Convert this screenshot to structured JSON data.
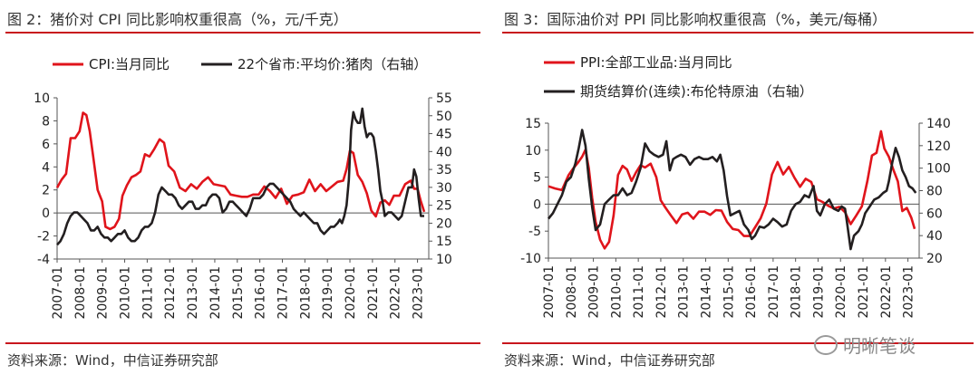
{
  "left": {
    "title": "图 2：猪价对 CPI 同比影响权重很高（%，元/千克）",
    "source": "资料来源：Wind，中信证券研究部"
  },
  "right": {
    "title": "图 3：国际油价对 PPI 同比影响权重很高（%，美元/每桶）",
    "source": "资料来源：Wind，中信证券研究部"
  },
  "watermark": "明晰笔谈",
  "colors": {
    "red": "#e0141b",
    "black": "#231f20",
    "accent": "#c8161d"
  },
  "chart_data": [
    {
      "type": "line",
      "x_ticks": [
        "2007-01",
        "2008-01",
        "2009-01",
        "2010-01",
        "2011-01",
        "2012-01",
        "2013-01",
        "2014-01",
        "2015-01",
        "2016-01",
        "2017-01",
        "2018-01",
        "2019-01",
        "2020-01",
        "2021-01",
        "2022-01",
        "2023-01"
      ],
      "x_range": [
        2007.0,
        2023.5
      ],
      "ylim": [
        -4,
        10
      ],
      "yticks": [
        -4,
        -2,
        0,
        2,
        4,
        6,
        8,
        10
      ],
      "y2lim": [
        10,
        55
      ],
      "y2ticks": [
        10,
        15,
        20,
        25,
        30,
        35,
        40,
        45,
        50,
        55
      ],
      "series": [
        {
          "name": "CPI:当月同比",
          "axis": "left",
          "color": "#e0141b",
          "x": [
            2007.0,
            2007.2,
            2007.4,
            2007.6,
            2007.8,
            2008.0,
            2008.15,
            2008.3,
            2008.45,
            2008.6,
            2008.8,
            2009.0,
            2009.15,
            2009.35,
            2009.55,
            2009.75,
            2009.9,
            2010.1,
            2010.3,
            2010.5,
            2010.7,
            2010.9,
            2011.1,
            2011.3,
            2011.55,
            2011.75,
            2011.95,
            2012.2,
            2012.45,
            2012.7,
            2012.95,
            2013.2,
            2013.45,
            2013.7,
            2013.95,
            2014.2,
            2014.45,
            2014.7,
            2014.95,
            2015.2,
            2015.45,
            2015.7,
            2015.95,
            2016.2,
            2016.45,
            2016.7,
            2016.95,
            2017.2,
            2017.45,
            2017.7,
            2017.95,
            2018.2,
            2018.45,
            2018.7,
            2018.95,
            2019.2,
            2019.45,
            2019.7,
            2019.85,
            2020.0,
            2020.15,
            2020.35,
            2020.55,
            2020.75,
            2020.95,
            2021.15,
            2021.35,
            2021.55,
            2021.75,
            2021.95,
            2022.2,
            2022.45,
            2022.7,
            2022.85,
            2023.0,
            2023.15,
            2023.3
          ],
          "y": [
            2.2,
            2.9,
            3.4,
            6.5,
            6.5,
            7.1,
            8.7,
            8.5,
            7.1,
            4.9,
            2.0,
            1.0,
            -1.2,
            -1.4,
            -1.2,
            -0.5,
            1.5,
            2.4,
            3.1,
            3.3,
            3.6,
            5.1,
            4.9,
            5.5,
            6.4,
            6.1,
            4.1,
            3.6,
            2.2,
            1.9,
            2.5,
            2.1,
            2.7,
            3.1,
            2.5,
            2.4,
            2.3,
            1.6,
            1.5,
            1.4,
            1.4,
            1.6,
            1.6,
            2.3,
            1.9,
            1.3,
            2.1,
            0.8,
            1.5,
            1.6,
            1.8,
            2.9,
            1.9,
            2.5,
            1.9,
            2.3,
            2.7,
            2.8,
            3.8,
            5.4,
            5.2,
            3.3,
            2.7,
            1.7,
            0.2,
            -0.3,
            0.9,
            1.1,
            0.7,
            1.5,
            1.5,
            2.5,
            2.8,
            2.1,
            2.1,
            1.0,
            0.1
          ]
        },
        {
          "name": "22个省市:平均价:猪肉（右轴）",
          "axis": "right",
          "color": "#231f20",
          "x": [
            2007.0,
            2007.15,
            2007.3,
            2007.45,
            2007.6,
            2007.75,
            2007.9,
            2008.05,
            2008.2,
            2008.35,
            2008.5,
            2008.65,
            2008.8,
            2008.95,
            2009.1,
            2009.25,
            2009.4,
            2009.55,
            2009.7,
            2009.85,
            2010.0,
            2010.15,
            2010.3,
            2010.45,
            2010.6,
            2010.75,
            2010.9,
            2011.05,
            2011.2,
            2011.35,
            2011.5,
            2011.65,
            2011.8,
            2011.95,
            2012.1,
            2012.25,
            2012.4,
            2012.55,
            2012.7,
            2012.85,
            2013.0,
            2013.15,
            2013.3,
            2013.45,
            2013.6,
            2013.75,
            2013.9,
            2014.05,
            2014.2,
            2014.35,
            2014.5,
            2014.65,
            2014.8,
            2014.95,
            2015.1,
            2015.25,
            2015.4,
            2015.55,
            2015.7,
            2015.85,
            2016.0,
            2016.15,
            2016.3,
            2016.45,
            2016.6,
            2016.75,
            2016.9,
            2017.05,
            2017.2,
            2017.35,
            2017.5,
            2017.65,
            2017.8,
            2017.95,
            2018.1,
            2018.25,
            2018.4,
            2018.55,
            2018.7,
            2018.85,
            2019.0,
            2019.15,
            2019.3,
            2019.45,
            2019.55,
            2019.65,
            2019.75,
            2019.85,
            2019.95,
            2020.05,
            2020.15,
            2020.25,
            2020.35,
            2020.45,
            2020.55,
            2020.65,
            2020.75,
            2020.85,
            2020.95,
            2021.05,
            2021.15,
            2021.25,
            2021.35,
            2021.45,
            2021.55,
            2021.7,
            2021.85,
            2022.0,
            2022.15,
            2022.3,
            2022.45,
            2022.6,
            2022.75,
            2022.85,
            2022.95,
            2023.05,
            2023.15,
            2023.3
          ],
          "y": [
            14,
            15,
            17,
            20,
            22,
            23,
            23,
            22,
            21,
            20,
            18,
            18,
            19,
            17,
            16,
            16,
            15,
            16,
            17,
            17,
            18,
            16,
            15,
            15,
            16,
            18,
            19,
            19,
            20,
            23,
            28,
            30,
            29,
            28,
            28,
            27,
            25,
            24,
            25,
            26,
            26,
            24,
            24,
            25,
            25,
            27,
            28,
            28,
            27,
            23,
            24,
            26,
            26,
            25,
            24,
            23,
            22,
            24,
            27,
            27,
            27,
            28,
            30,
            31,
            31,
            30,
            29,
            28,
            27,
            26,
            24,
            23,
            22,
            23,
            22,
            21,
            20,
            20,
            18,
            17,
            18,
            19,
            19,
            20,
            21,
            20,
            22,
            25,
            32,
            46,
            51,
            49,
            48,
            48,
            52,
            47,
            44,
            45,
            45,
            44,
            40,
            35,
            29,
            26,
            22,
            23,
            23,
            22,
            21,
            22,
            26,
            30,
            30,
            35,
            33,
            27,
            22,
            22
          ]
        }
      ]
    },
    {
      "type": "line",
      "x_ticks": [
        "2007-01",
        "2008-01",
        "2009-01",
        "2010-01",
        "2011-01",
        "2012-01",
        "2013-01",
        "2014-01",
        "2015-01",
        "2016-01",
        "2017-01",
        "2018-01",
        "2019-01",
        "2020-01",
        "2021-01",
        "2022-01",
        "2023-01"
      ],
      "x_range": [
        2007.0,
        2023.5
      ],
      "ylim": [
        -10,
        15
      ],
      "yticks": [
        -10,
        -5,
        0,
        5,
        10,
        15
      ],
      "y2lim": [
        20,
        140
      ],
      "y2ticks": [
        20,
        40,
        60,
        80,
        100,
        120,
        140
      ],
      "series": [
        {
          "name": "PPI:全部工业品:当月同比",
          "axis": "left",
          "color": "#e0141b",
          "x": [
            2007.0,
            2007.3,
            2007.6,
            2007.9,
            2008.1,
            2008.3,
            2008.5,
            2008.65,
            2008.8,
            2008.95,
            2009.1,
            2009.3,
            2009.5,
            2009.7,
            2009.9,
            2010.1,
            2010.3,
            2010.5,
            2010.7,
            2010.9,
            2011.1,
            2011.3,
            2011.55,
            2011.8,
            2012.0,
            2012.2,
            2012.45,
            2012.7,
            2012.95,
            2013.2,
            2013.45,
            2013.7,
            2013.95,
            2014.2,
            2014.45,
            2014.7,
            2014.95,
            2015.2,
            2015.45,
            2015.7,
            2015.95,
            2016.2,
            2016.45,
            2016.7,
            2016.95,
            2017.2,
            2017.45,
            2017.7,
            2017.95,
            2018.2,
            2018.45,
            2018.7,
            2018.95,
            2019.2,
            2019.45,
            2019.7,
            2019.95,
            2020.2,
            2020.45,
            2020.7,
            2020.95,
            2021.2,
            2021.4,
            2021.6,
            2021.8,
            2021.95,
            2022.15,
            2022.35,
            2022.55,
            2022.75,
            2022.95,
            2023.15,
            2023.3
          ],
          "y": [
            3.3,
            2.9,
            2.6,
            5.4,
            6.6,
            7.6,
            8.8,
            10.1,
            6.6,
            1.1,
            -3.3,
            -6.6,
            -8.2,
            -7.0,
            -2.1,
            5.4,
            7.1,
            6.4,
            4.3,
            5.9,
            7.2,
            6.8,
            7.5,
            5.0,
            0.7,
            -0.6,
            -2.1,
            -3.5,
            -1.9,
            -1.6,
            -2.7,
            -1.4,
            -1.4,
            -2.0,
            -1.1,
            -1.2,
            -3.3,
            -4.6,
            -4.8,
            -5.9,
            -5.9,
            -4.3,
            -2.6,
            0.1,
            5.5,
            7.8,
            5.5,
            6.9,
            4.9,
            3.2,
            4.7,
            4.1,
            0.9,
            0.4,
            -0.3,
            -0.8,
            -0.5,
            -1.5,
            -3.7,
            -2.1,
            -0.4,
            4.4,
            9.0,
            9.5,
            13.5,
            10.3,
            8.8,
            6.4,
            4.2,
            -1.3,
            -0.7,
            -2.5,
            -4.6
          ]
        },
        {
          "name": "期货结算价(连续):布伦特原油（右轴）",
          "axis": "right",
          "color": "#231f20",
          "x": [
            2007.0,
            2007.2,
            2007.4,
            2007.6,
            2007.8,
            2008.0,
            2008.2,
            2008.35,
            2008.5,
            2008.65,
            2008.8,
            2008.95,
            2009.1,
            2009.3,
            2009.5,
            2009.7,
            2009.9,
            2010.1,
            2010.3,
            2010.5,
            2010.7,
            2010.9,
            2011.1,
            2011.3,
            2011.5,
            2011.7,
            2011.9,
            2012.1,
            2012.25,
            2012.4,
            2012.55,
            2012.7,
            2012.9,
            2013.1,
            2013.3,
            2013.5,
            2013.7,
            2013.9,
            2014.1,
            2014.3,
            2014.5,
            2014.65,
            2014.8,
            2014.95,
            2015.1,
            2015.3,
            2015.5,
            2015.7,
            2015.9,
            2016.05,
            2016.2,
            2016.4,
            2016.6,
            2016.8,
            2017.0,
            2017.2,
            2017.4,
            2017.6,
            2017.8,
            2018.0,
            2018.2,
            2018.4,
            2018.6,
            2018.8,
            2018.95,
            2019.1,
            2019.3,
            2019.5,
            2019.7,
            2019.9,
            2020.05,
            2020.2,
            2020.3,
            2020.45,
            2020.6,
            2020.8,
            2020.95,
            2021.1,
            2021.3,
            2021.5,
            2021.7,
            2021.9,
            2022.05,
            2022.15,
            2022.3,
            2022.45,
            2022.6,
            2022.75,
            2022.9,
            2023.05,
            2023.2,
            2023.35
          ],
          "y": [
            55,
            60,
            68,
            76,
            88,
            92,
            104,
            118,
            134,
            120,
            90,
            65,
            45,
            50,
            68,
            72,
            76,
            76,
            82,
            76,
            78,
            88,
            100,
            122,
            115,
            112,
            110,
            112,
            124,
            98,
            108,
            110,
            112,
            110,
            103,
            108,
            110,
            108,
            108,
            110,
            106,
            112,
            98,
            75,
            58,
            60,
            62,
            50,
            45,
            37,
            40,
            48,
            47,
            50,
            55,
            52,
            48,
            50,
            62,
            68,
            70,
            76,
            74,
            84,
            62,
            58,
            68,
            72,
            64,
            62,
            66,
            64,
            50,
            28,
            40,
            44,
            50,
            60,
            66,
            72,
            74,
            78,
            80,
            88,
            105,
            118,
            110,
            98,
            92,
            84,
            82,
            78
          ]
        }
      ]
    }
  ]
}
